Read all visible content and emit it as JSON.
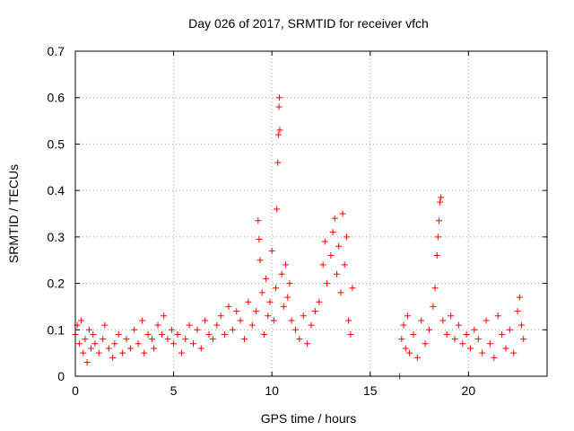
{
  "chart_data": {
    "type": "scatter",
    "title": "Day 026 of 2017, SRMTID for receiver vfch",
    "xlabel": "GPS time / hours",
    "ylabel": "SRMTID / TECUs",
    "xlim": [
      0,
      24
    ],
    "ylim": [
      0,
      0.7
    ],
    "x_ticks": [
      0,
      5,
      10,
      15,
      20
    ],
    "x_tick_labels": [
      "0",
      "5",
      "10",
      "15",
      "20"
    ],
    "y_ticks": [
      0,
      0.1,
      0.2,
      0.3,
      0.4,
      0.5,
      0.6,
      0.7
    ],
    "y_tick_labels": [
      "0",
      "0.1",
      "0.2",
      "0.3",
      "0.4",
      "0.5",
      "0.6",
      "0.7"
    ],
    "grid": true,
    "marker": "plus",
    "series_color": "#ff0000",
    "series": [
      {
        "name": "SRMTID",
        "points": [
          [
            0.0,
            0.09
          ],
          [
            0.1,
            0.11
          ],
          [
            0.2,
            0.07
          ],
          [
            0.3,
            0.12
          ],
          [
            0.4,
            0.05
          ],
          [
            0.5,
            0.08
          ],
          [
            0.6,
            0.03
          ],
          [
            0.7,
            0.1
          ],
          [
            0.8,
            0.06
          ],
          [
            0.9,
            0.09
          ],
          [
            1.0,
            0.07
          ],
          [
            1.2,
            0.05
          ],
          [
            1.4,
            0.08
          ],
          [
            1.5,
            0.11
          ],
          [
            1.7,
            0.06
          ],
          [
            1.9,
            0.04
          ],
          [
            2.0,
            0.07
          ],
          [
            2.2,
            0.09
          ],
          [
            2.4,
            0.05
          ],
          [
            2.6,
            0.08
          ],
          [
            2.8,
            0.06
          ],
          [
            3.0,
            0.1
          ],
          [
            3.2,
            0.07
          ],
          [
            3.4,
            0.12
          ],
          [
            3.5,
            0.05
          ],
          [
            3.7,
            0.09
          ],
          [
            3.9,
            0.08
          ],
          [
            4.0,
            0.06
          ],
          [
            4.2,
            0.11
          ],
          [
            4.4,
            0.09
          ],
          [
            4.5,
            0.13
          ],
          [
            4.7,
            0.08
          ],
          [
            4.9,
            0.1
          ],
          [
            5.0,
            0.07
          ],
          [
            5.2,
            0.09
          ],
          [
            5.4,
            0.05
          ],
          [
            5.6,
            0.08
          ],
          [
            5.8,
            0.11
          ],
          [
            6.0,
            0.07
          ],
          [
            6.2,
            0.1
          ],
          [
            6.4,
            0.06
          ],
          [
            6.6,
            0.12
          ],
          [
            6.8,
            0.09
          ],
          [
            7.0,
            0.08
          ],
          [
            7.2,
            0.11
          ],
          [
            7.4,
            0.13
          ],
          [
            7.6,
            0.09
          ],
          [
            7.8,
            0.15
          ],
          [
            8.0,
            0.1
          ],
          [
            8.2,
            0.14
          ],
          [
            8.4,
            0.12
          ],
          [
            8.6,
            0.08
          ],
          [
            8.8,
            0.16
          ],
          [
            9.0,
            0.11
          ],
          [
            9.2,
            0.14
          ],
          [
            9.3,
            0.335
          ],
          [
            9.35,
            0.295
          ],
          [
            9.4,
            0.25
          ],
          [
            9.5,
            0.18
          ],
          [
            9.6,
            0.09
          ],
          [
            9.7,
            0.21
          ],
          [
            9.8,
            0.13
          ],
          [
            9.9,
            0.16
          ],
          [
            10.0,
            0.27
          ],
          [
            10.1,
            0.12
          ],
          [
            10.2,
            0.19
          ],
          [
            10.25,
            0.36
          ],
          [
            10.3,
            0.46
          ],
          [
            10.33,
            0.52
          ],
          [
            10.36,
            0.58
          ],
          [
            10.38,
            0.6
          ],
          [
            10.4,
            0.53
          ],
          [
            10.5,
            0.22
          ],
          [
            10.6,
            0.15
          ],
          [
            10.7,
            0.24
          ],
          [
            10.8,
            0.17
          ],
          [
            10.9,
            0.2
          ],
          [
            11.0,
            0.12
          ],
          [
            11.2,
            0.1
          ],
          [
            11.4,
            0.08
          ],
          [
            11.6,
            0.13
          ],
          [
            11.8,
            0.07
          ],
          [
            12.0,
            0.11
          ],
          [
            12.2,
            0.14
          ],
          [
            12.4,
            0.16
          ],
          [
            12.6,
            0.24
          ],
          [
            12.7,
            0.29
          ],
          [
            12.8,
            0.2
          ],
          [
            13.0,
            0.26
          ],
          [
            13.1,
            0.31
          ],
          [
            13.2,
            0.34
          ],
          [
            13.3,
            0.22
          ],
          [
            13.4,
            0.28
          ],
          [
            13.5,
            0.18
          ],
          [
            13.6,
            0.35
          ],
          [
            13.7,
            0.24
          ],
          [
            13.8,
            0.3
          ],
          [
            13.9,
            0.12
          ],
          [
            14.0,
            0.09
          ],
          [
            14.1,
            0.19
          ],
          [
            16.5,
            0.0
          ],
          [
            16.6,
            0.08
          ],
          [
            16.7,
            0.11
          ],
          [
            16.8,
            0.06
          ],
          [
            16.9,
            0.13
          ],
          [
            17.0,
            0.05
          ],
          [
            17.2,
            0.09
          ],
          [
            17.4,
            0.04
          ],
          [
            17.6,
            0.12
          ],
          [
            17.8,
            0.07
          ],
          [
            18.0,
            0.1
          ],
          [
            18.2,
            0.15
          ],
          [
            18.3,
            0.19
          ],
          [
            18.4,
            0.26
          ],
          [
            18.45,
            0.3
          ],
          [
            18.5,
            0.335
          ],
          [
            18.55,
            0.375
          ],
          [
            18.6,
            0.385
          ],
          [
            18.7,
            0.12
          ],
          [
            18.9,
            0.09
          ],
          [
            19.1,
            0.13
          ],
          [
            19.3,
            0.08
          ],
          [
            19.5,
            0.11
          ],
          [
            19.7,
            0.07
          ],
          [
            19.9,
            0.09
          ],
          [
            20.1,
            0.06
          ],
          [
            20.3,
            0.1
          ],
          [
            20.5,
            0.08
          ],
          [
            20.7,
            0.05
          ],
          [
            20.9,
            0.12
          ],
          [
            21.1,
            0.07
          ],
          [
            21.3,
            0.04
          ],
          [
            21.5,
            0.13
          ],
          [
            21.7,
            0.09
          ],
          [
            21.9,
            0.06
          ],
          [
            22.1,
            0.1
          ],
          [
            22.3,
            0.05
          ],
          [
            22.5,
            0.14
          ],
          [
            22.6,
            0.17
          ],
          [
            22.7,
            0.11
          ],
          [
            22.8,
            0.08
          ]
        ]
      }
    ]
  }
}
